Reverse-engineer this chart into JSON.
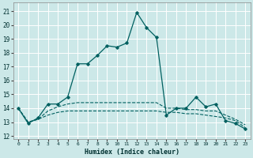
{
  "title": "",
  "xlabel": "Humidex (Indice chaleur)",
  "bg_color": "#cce8e8",
  "grid_color": "#aacccc",
  "line_color": "#006060",
  "xlim": [
    -0.5,
    23.5
  ],
  "ylim": [
    11.8,
    21.6
  ],
  "yticks": [
    12,
    13,
    14,
    15,
    16,
    17,
    18,
    19,
    20,
    21
  ],
  "xticks": [
    0,
    1,
    2,
    3,
    4,
    5,
    6,
    7,
    8,
    9,
    10,
    11,
    12,
    13,
    14,
    15,
    16,
    17,
    18,
    19,
    20,
    21,
    22,
    23
  ],
  "series1_x": [
    0,
    1,
    2,
    3,
    4,
    5,
    6,
    7,
    8,
    9,
    10,
    11,
    12,
    13,
    14,
    15,
    16,
    17,
    18,
    19,
    20,
    21,
    22,
    23
  ],
  "series1_y": [
    14.0,
    12.9,
    13.3,
    14.3,
    14.3,
    14.8,
    17.2,
    17.2,
    17.8,
    18.5,
    18.4,
    18.7,
    20.9,
    19.8,
    19.1,
    13.5,
    14.0,
    14.0,
    14.8,
    14.1,
    14.3,
    13.1,
    12.9,
    12.5
  ],
  "series2_x": [
    0,
    1,
    2,
    3,
    4,
    5,
    6,
    7,
    8,
    9,
    10,
    11,
    12,
    13,
    14,
    15,
    16,
    17,
    18,
    19,
    20,
    21,
    22,
    23
  ],
  "series2_y": [
    14.0,
    13.0,
    13.2,
    13.5,
    13.7,
    13.8,
    13.8,
    13.8,
    13.8,
    13.8,
    13.8,
    13.8,
    13.8,
    13.8,
    13.8,
    13.7,
    13.7,
    13.6,
    13.6,
    13.5,
    13.4,
    13.3,
    13.1,
    12.6
  ],
  "series3_x": [
    0,
    1,
    2,
    3,
    4,
    5,
    6,
    7,
    8,
    9,
    10,
    11,
    12,
    13,
    14,
    15,
    16,
    17,
    18,
    19,
    20,
    21,
    22,
    23
  ],
  "series3_y": [
    14.0,
    13.0,
    13.2,
    13.8,
    14.1,
    14.3,
    14.4,
    14.4,
    14.4,
    14.4,
    14.4,
    14.4,
    14.4,
    14.4,
    14.4,
    14.0,
    14.0,
    13.9,
    13.9,
    13.8,
    13.8,
    13.5,
    13.2,
    12.8
  ]
}
